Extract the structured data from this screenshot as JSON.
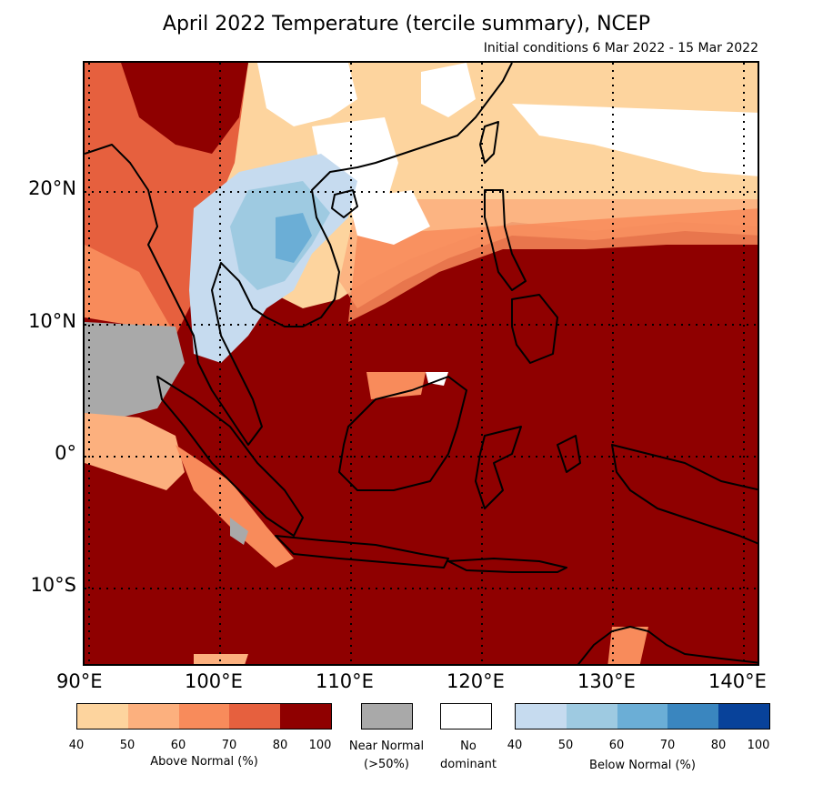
{
  "title": "April 2022 Temperature (tercile summary), NCEP",
  "subtitle": "Initial conditions 6 Mar 2022 - 15 Mar 2022",
  "lat_labels": [
    "20°N",
    "10°N",
    "0°",
    "10°S"
  ],
  "lon_labels": [
    "90°E",
    "100°E",
    "110°E",
    "120°E",
    "130°E",
    "140°E"
  ],
  "legend": {
    "above": {
      "ticks": [
        "40",
        "50",
        "60",
        "70",
        "80",
        "100"
      ],
      "label": "Above Normal (%)",
      "colors": [
        "#fdd49e",
        "#fcb07e",
        "#f88b5b",
        "#e6603e",
        "#8f0000"
      ]
    },
    "near": {
      "label_line1": "Near Normal",
      "label_line2": "(>50%)",
      "color": "#a9a9a9"
    },
    "none": {
      "label_line1": "No",
      "label_line2": "dominant",
      "color": "#ffffff"
    },
    "below": {
      "ticks": [
        "40",
        "50",
        "60",
        "70",
        "80",
        "100"
      ],
      "label": "Below Normal (%)",
      "colors": [
        "#c6dbef",
        "#9ecae1",
        "#6baed6",
        "#3a86bf",
        "#08429a"
      ]
    }
  }
}
